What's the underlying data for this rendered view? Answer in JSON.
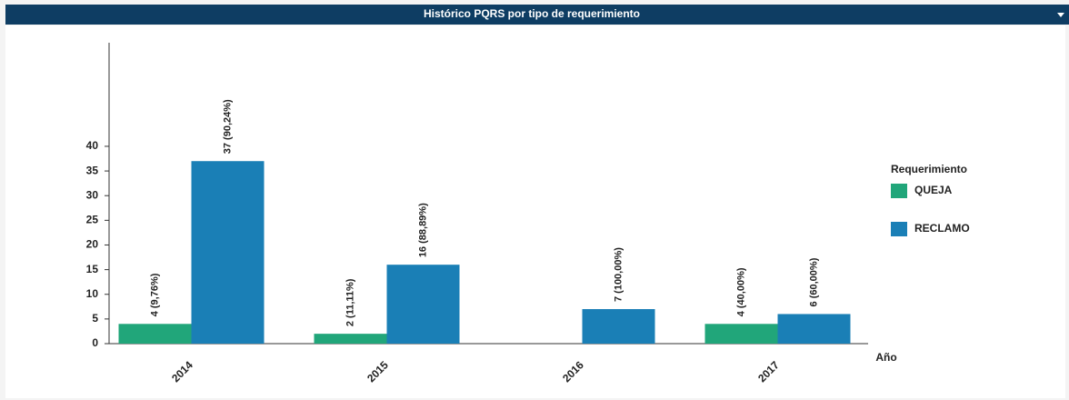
{
  "chart_data": {
    "type": "bar",
    "title": "Histórico PQRS por tipo de requerimiento",
    "x_label": "Año",
    "legend_title": "Requerimiento",
    "legend": "right",
    "categories": [
      "2014",
      "2015",
      "2016",
      "2017"
    ],
    "series": [
      {
        "name": "QUEJA",
        "color": "#21a67a",
        "values": [
          4,
          2,
          null,
          4
        ],
        "value_labels": [
          "4 (9,76%)",
          "2 (11,11%)",
          null,
          "4 (40,00%)"
        ]
      },
      {
        "name": "RECLAMO",
        "color": "#1a7fb6",
        "values": [
          37,
          16,
          7,
          6
        ],
        "value_labels": [
          "37 (90,24%)",
          "16 (88,89%)",
          "7 (100,00%)",
          "6 (60,00%)"
        ]
      }
    ],
    "ylim": [
      0,
      61
    ],
    "yticks": [
      0,
      5,
      10,
      15,
      20,
      25,
      30,
      35,
      40
    ],
    "grid": false
  }
}
